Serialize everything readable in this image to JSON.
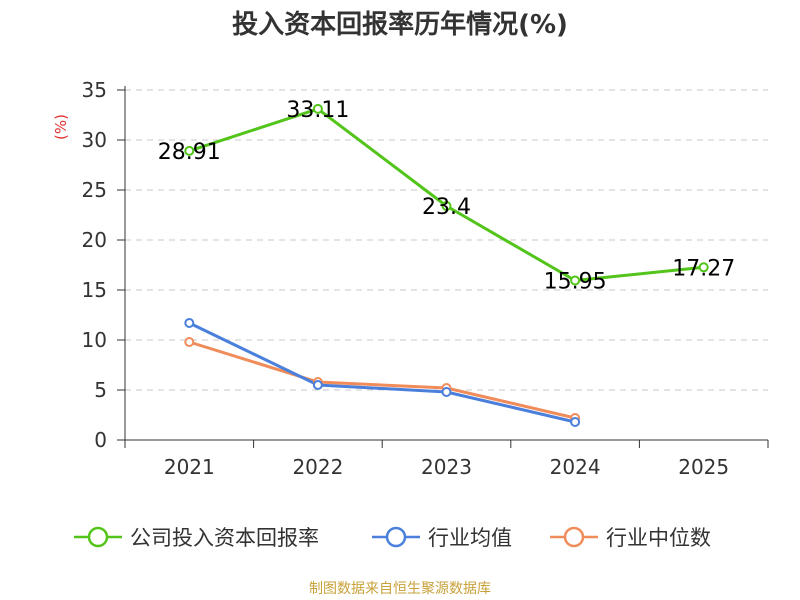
{
  "title": "投入资本回报率历年情况(%)",
  "footer": "制图数据来自恒生聚源数据库",
  "chart_data": {
    "type": "line",
    "categories": [
      "2021",
      "2022",
      "2023",
      "2024",
      "2025"
    ],
    "ylabel": "(%)",
    "ylim": [
      0,
      35
    ],
    "yticks": [
      0,
      5,
      10,
      15,
      20,
      25,
      30,
      35
    ],
    "grid": true,
    "legend_position": "bottom",
    "series": [
      {
        "name": "公司投入资本回报率",
        "color": "#52c41a",
        "values": [
          28.91,
          33.11,
          23.4,
          15.95,
          17.27
        ],
        "labels": [
          "28.91",
          "33.11",
          "23.4",
          "15.95",
          "17.27"
        ],
        "show_labels": true
      },
      {
        "name": "行业均值",
        "color": "#4a7fdc",
        "values": [
          11.7,
          5.5,
          4.8,
          1.8,
          null
        ],
        "show_labels": false
      },
      {
        "name": "行业中位数",
        "color": "#f08c5a",
        "values": [
          9.8,
          5.8,
          5.2,
          2.2,
          null
        ],
        "show_labels": false
      }
    ]
  }
}
